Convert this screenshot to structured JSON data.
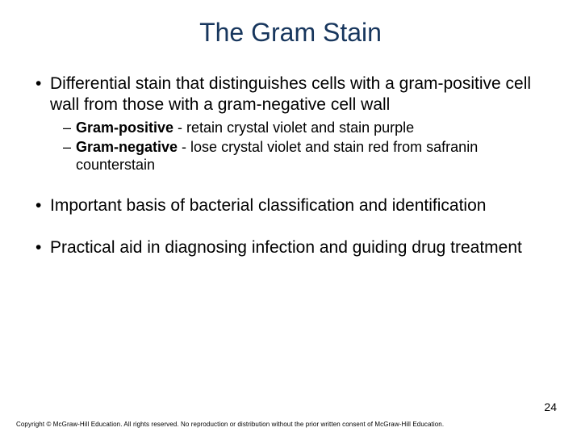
{
  "slide": {
    "title": "The Gram Stain",
    "title_color": "#17365d",
    "title_fontsize": 32,
    "background_color": "#ffffff",
    "body_color": "#000000",
    "body_fontsize": 21,
    "sub_fontsize": 18,
    "bullets": [
      {
        "text": "Differential stain that distinguishes cells with a gram-positive cell wall from those with a gram-negative cell wall",
        "sub": [
          {
            "bold": "Gram-positive",
            "rest": " - retain crystal violet and stain purple"
          },
          {
            "bold": "Gram-negative",
            "rest": " - lose crystal violet and stain red from safranin counterstain"
          }
        ]
      },
      {
        "text": "Important basis of bacterial classification and identification"
      },
      {
        "text": "Practical aid in diagnosing infection and guiding drug treatment"
      }
    ],
    "page_number": "24",
    "copyright": "Copyright © McGraw-Hill Education. All rights reserved. No reproduction or distribution without the prior written consent of McGraw-Hill Education."
  }
}
